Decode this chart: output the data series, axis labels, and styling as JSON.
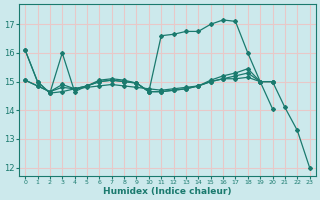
{
  "background_color": "#cce9ec",
  "grid_color": "#e8c8c8",
  "line_color": "#1a7a6e",
  "xlabel": "Humidex (Indice chaleur)",
  "xlim": [
    -0.5,
    23.5
  ],
  "ylim": [
    11.7,
    17.7
  ],
  "yticks": [
    12,
    13,
    14,
    15,
    16,
    17
  ],
  "xticks": [
    0,
    1,
    2,
    3,
    4,
    5,
    6,
    7,
    8,
    9,
    10,
    11,
    12,
    13,
    14,
    15,
    16,
    17,
    18,
    19,
    20,
    21,
    22,
    23
  ],
  "line1_x": [
    0,
    1,
    2,
    3,
    4,
    5,
    6,
    7,
    8,
    9,
    10,
    11,
    12,
    13,
    14,
    15,
    16,
    17,
    18,
    19,
    20,
    21,
    22,
    23
  ],
  "line1_y": [
    16.1,
    15.0,
    14.6,
    14.65,
    14.75,
    14.8,
    14.85,
    14.9,
    14.85,
    14.8,
    14.75,
    14.7,
    14.75,
    14.8,
    14.85,
    15.0,
    15.1,
    15.2,
    15.3,
    15.0,
    15.0,
    14.1,
    13.3,
    12.0
  ],
  "line2_x": [
    0,
    1,
    2,
    3,
    4,
    5,
    6,
    7,
    8,
    9,
    10,
    11,
    12,
    13,
    14,
    15,
    16,
    17,
    18,
    19,
    20
  ],
  "line2_y": [
    16.1,
    15.0,
    14.6,
    16.0,
    14.65,
    14.85,
    15.05,
    15.1,
    15.05,
    14.95,
    14.65,
    16.6,
    16.65,
    16.75,
    16.75,
    17.0,
    17.15,
    17.1,
    16.0,
    15.0,
    14.05
  ],
  "line3_x": [
    0,
    1,
    2,
    3,
    4,
    5,
    6,
    7,
    8,
    9,
    10,
    11,
    12,
    13,
    14,
    15,
    16,
    17,
    18,
    19,
    20
  ],
  "line3_y": [
    15.05,
    14.85,
    14.65,
    14.8,
    14.75,
    14.85,
    15.0,
    15.05,
    15.0,
    14.95,
    14.65,
    14.65,
    14.7,
    14.75,
    14.85,
    15.0,
    15.1,
    15.1,
    15.15,
    15.0,
    15.0
  ],
  "line4_x": [
    0,
    1,
    2,
    3,
    4,
    5,
    6,
    7,
    8,
    9,
    10,
    11,
    12,
    13,
    14,
    15,
    16,
    17,
    18,
    19,
    20
  ],
  "line4_y": [
    15.05,
    14.85,
    14.65,
    14.9,
    14.75,
    14.85,
    15.0,
    15.05,
    15.0,
    14.95,
    14.65,
    14.65,
    14.7,
    14.75,
    14.85,
    15.05,
    15.2,
    15.3,
    15.45,
    15.0,
    15.0
  ]
}
